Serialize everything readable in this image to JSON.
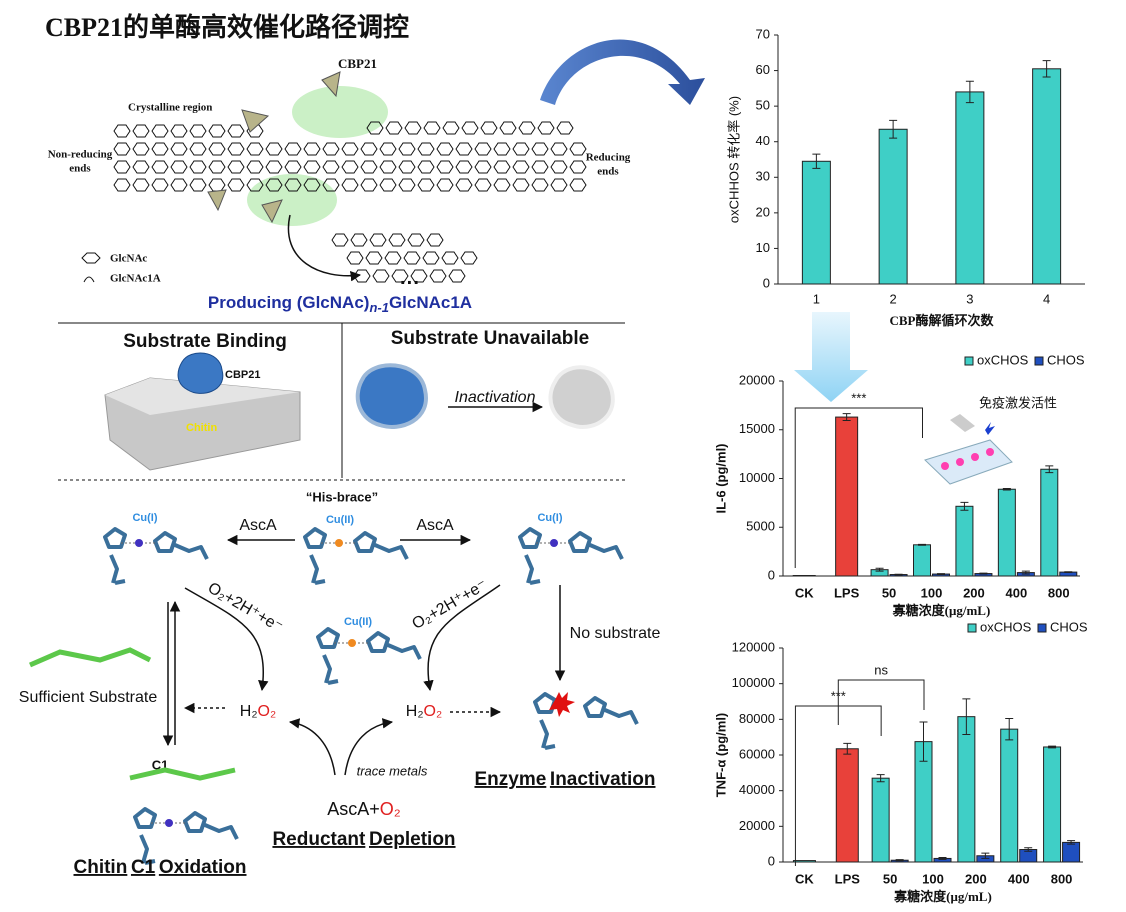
{
  "header_title": "CBP21的单酶高效催化路径调控",
  "top_panel": {
    "enzyme": "CBP21",
    "crystalline": "Crystalline region",
    "nonreducing": [
      "Non-reducing",
      "ends"
    ],
    "reducing": [
      "Reducing",
      "ends"
    ],
    "legend": [
      "GlcNAc",
      "GlcNAc1A"
    ],
    "dots": "···",
    "product": [
      "Producing (GlcNAc)",
      "n-1",
      "GlcNAc1A"
    ]
  },
  "mid_panel": {
    "binding": "Substrate Binding",
    "unavailable": "Substrate Unavailable",
    "enzyme": "CBP21",
    "chitin": "Chitin",
    "inactivation": "Inactivation"
  },
  "mechanism": {
    "his_brace": "“His-brace”",
    "cu_left": "Cu(I)",
    "cu_center": "Cu(II)",
    "cu_right": "Cu(I)",
    "cu_mid": "Cu(II)",
    "asca_left": "AscA",
    "asca_right": "AscA",
    "o2_left": "O₂+2H⁺+e⁻",
    "o2_right": "O₂+2H⁺+e⁻",
    "no_substrate": "No substrate",
    "sufficient": "Sufficient Substrate",
    "h2o2_left": [
      "H₂",
      "O₂"
    ],
    "h2o2_right": [
      "H₂",
      "O₂"
    ],
    "trace": "trace metals",
    "asca_o2": [
      "AscA+",
      "O₂"
    ],
    "c1": "C1",
    "outcome_left": [
      "Chitin",
      "C1",
      "Oxidation"
    ],
    "outcome_mid": [
      "Reductant",
      "Depletion"
    ],
    "outcome_right": [
      "Enzyme",
      "Inactivation"
    ]
  },
  "chart_data": [
    {
      "type": "bar",
      "ylabel": "oxCHHOS 转化率 (%)",
      "xlabel": "CBP酶解循环次数",
      "categories": [
        "1",
        "2",
        "3",
        "4"
      ],
      "values": [
        34.5,
        43.5,
        54,
        60.5
      ],
      "errors": [
        2,
        2.5,
        3,
        2.3
      ],
      "color": "#3fcfc6",
      "ylim": [
        0,
        70
      ],
      "yticks": [
        0,
        10,
        20,
        30,
        40,
        50,
        60,
        70
      ]
    },
    {
      "type": "grouped_bar",
      "ylabel": "IL-6 (pg/ml)",
      "xlabel": "寡糖浓度(μg/mL)",
      "note": "免疫激发活性",
      "annotations": [
        "***"
      ],
      "legend": "top-right",
      "categories": [
        "CK",
        "LPS",
        "50",
        "100",
        "200",
        "400",
        "800"
      ],
      "series": [
        {
          "name": "oxCHOS",
          "color": "#3fcfc6",
          "point_colors": [
            "#3fcfc6",
            "#e8413a",
            "#3fcfc6",
            "#3fcfc6",
            "#3fcfc6",
            "#3fcfc6",
            "#3fcfc6"
          ],
          "values": [
            50,
            16300,
            650,
            3200,
            7150,
            8900,
            10950
          ],
          "errors": [
            0,
            350,
            150,
            50,
            400,
            80,
            350
          ]
        },
        {
          "name": "CHOS",
          "color": "#1f4fbf",
          "values": [
            null,
            null,
            150,
            200,
            250,
            350,
            400
          ],
          "errors": [
            null,
            null,
            30,
            40,
            40,
            150,
            40
          ]
        }
      ],
      "ylim": [
        0,
        20000
      ],
      "yticks": [
        0,
        5000,
        10000,
        15000,
        20000
      ]
    },
    {
      "type": "grouped_bar",
      "ylabel": "TNF-α (pg/ml)",
      "xlabel": "寡糖浓度(μg/mL)",
      "annotations": [
        "***",
        "ns"
      ],
      "legend": "top-right",
      "categories": [
        "CK",
        "LPS",
        "50",
        "100",
        "200",
        "400",
        "800"
      ],
      "series": [
        {
          "name": "oxCHOS",
          "color": "#3fcfc6",
          "point_colors": [
            "#3fcfc6",
            "#e8413a",
            "#3fcfc6",
            "#3fcfc6",
            "#3fcfc6",
            "#3fcfc6",
            "#3fcfc6"
          ],
          "values": [
            800,
            63500,
            47000,
            67500,
            81500,
            74500,
            64500
          ],
          "errors": [
            0,
            3000,
            2000,
            11000,
            10000,
            6000,
            500
          ]
        },
        {
          "name": "CHOS",
          "color": "#1f4fbf",
          "values": [
            null,
            null,
            1000,
            2000,
            3500,
            7000,
            11000
          ],
          "errors": [
            null,
            null,
            300,
            500,
            1500,
            1000,
            1000
          ]
        }
      ],
      "ylim": [
        0,
        120000
      ],
      "yticks": [
        0,
        20000,
        40000,
        60000,
        80000,
        100000,
        120000
      ]
    }
  ]
}
